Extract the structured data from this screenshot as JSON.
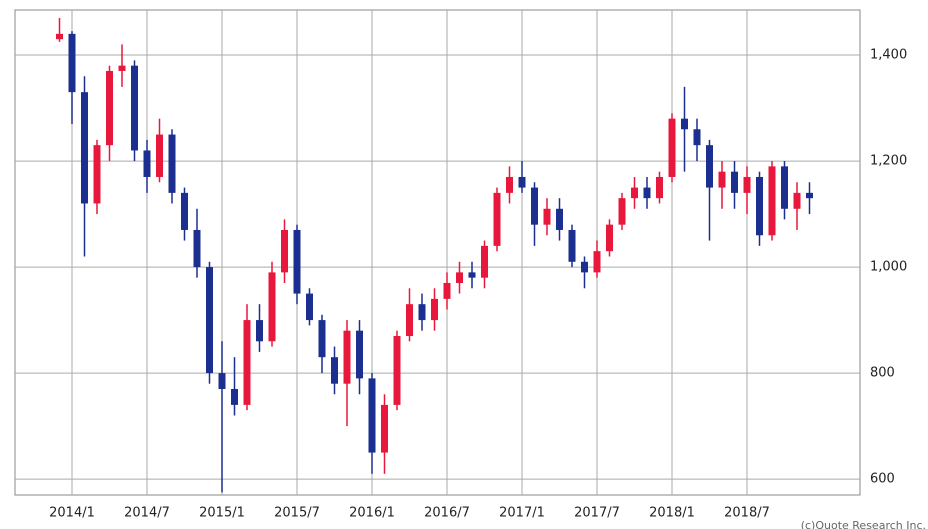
{
  "chart_data": {
    "type": "candlestick",
    "credit": "(c)Quote Research Inc.",
    "categories": [
      null,
      "2014/1",
      null,
      null,
      null,
      null,
      null,
      "2014/7",
      null,
      null,
      null,
      null,
      null,
      "2015/1",
      null,
      null,
      null,
      null,
      null,
      "2015/7",
      null,
      null,
      null,
      null,
      null,
      "2016/1",
      null,
      null,
      null,
      null,
      null,
      "2016/7",
      null,
      null,
      null,
      null,
      null,
      "2017/1",
      null,
      null,
      null,
      null,
      null,
      "2017/7",
      null,
      null,
      null,
      null,
      null,
      "2018/1",
      null,
      null,
      null,
      null,
      null,
      "2018/7",
      null,
      null,
      null,
      null,
      null
    ],
    "open": [
      1430,
      1440,
      1330,
      1120,
      1230,
      1370,
      1380,
      1220,
      1170,
      1250,
      1140,
      1070,
      1000,
      800,
      770,
      740,
      900,
      860,
      990,
      1070,
      950,
      900,
      830,
      780,
      880,
      790,
      650,
      740,
      870,
      930,
      900,
      940,
      970,
      990,
      980,
      1040,
      1140,
      1170,
      1150,
      1080,
      1110,
      1070,
      1010,
      990,
      1030,
      1080,
      1130,
      1150,
      1130,
      1170,
      1280,
      1260,
      1230,
      1150,
      1180,
      1140,
      1170,
      1060,
      1190,
      1110,
      1140
    ],
    "high": [
      1470,
      1445,
      1360,
      1240,
      1380,
      1420,
      1390,
      1240,
      1280,
      1260,
      1150,
      1110,
      1010,
      860,
      830,
      930,
      930,
      1010,
      1090,
      1080,
      960,
      910,
      850,
      900,
      900,
      800,
      760,
      880,
      960,
      950,
      960,
      990,
      1010,
      1010,
      1050,
      1150,
      1190,
      1200,
      1160,
      1130,
      1130,
      1080,
      1020,
      1050,
      1090,
      1140,
      1170,
      1170,
      1180,
      1290,
      1340,
      1280,
      1240,
      1200,
      1200,
      1190,
      1180,
      1200,
      1200,
      1160,
      1160
    ],
    "low": [
      1425,
      1270,
      1020,
      1100,
      1200,
      1340,
      1200,
      1140,
      1160,
      1120,
      1050,
      980,
      780,
      575,
      720,
      730,
      840,
      850,
      970,
      930,
      890,
      800,
      760,
      700,
      760,
      610,
      610,
      730,
      860,
      880,
      880,
      920,
      950,
      960,
      960,
      1030,
      1120,
      1140,
      1040,
      1060,
      1050,
      1000,
      960,
      980,
      1020,
      1070,
      1110,
      1110,
      1120,
      1160,
      1180,
      1200,
      1050,
      1110,
      1110,
      1100,
      1040,
      1050,
      1090,
      1070,
      1100
    ],
    "close": [
      1440,
      1330,
      1120,
      1230,
      1370,
      1380,
      1220,
      1170,
      1250,
      1140,
      1070,
      1000,
      800,
      770,
      740,
      900,
      860,
      990,
      1070,
      950,
      900,
      830,
      780,
      880,
      790,
      650,
      740,
      870,
      930,
      900,
      940,
      970,
      990,
      980,
      1040,
      1140,
      1170,
      1150,
      1080,
      1110,
      1070,
      1010,
      990,
      1030,
      1080,
      1130,
      1150,
      1130,
      1170,
      1280,
      1260,
      1230,
      1150,
      1180,
      1140,
      1170,
      1060,
      1190,
      1110,
      1140,
      1130
    ],
    "up_color": "#e8173c",
    "down_color": "#1a2f8f",
    "ylim": [
      570,
      1485
    ],
    "yticks": [
      600,
      800,
      {
        "value": 1000,
        "label": "1,000"
      },
      {
        "value": 1200,
        "label": "1,200"
      },
      {
        "value": 1400,
        "label": "1,400"
      }
    ],
    "grid": true
  }
}
